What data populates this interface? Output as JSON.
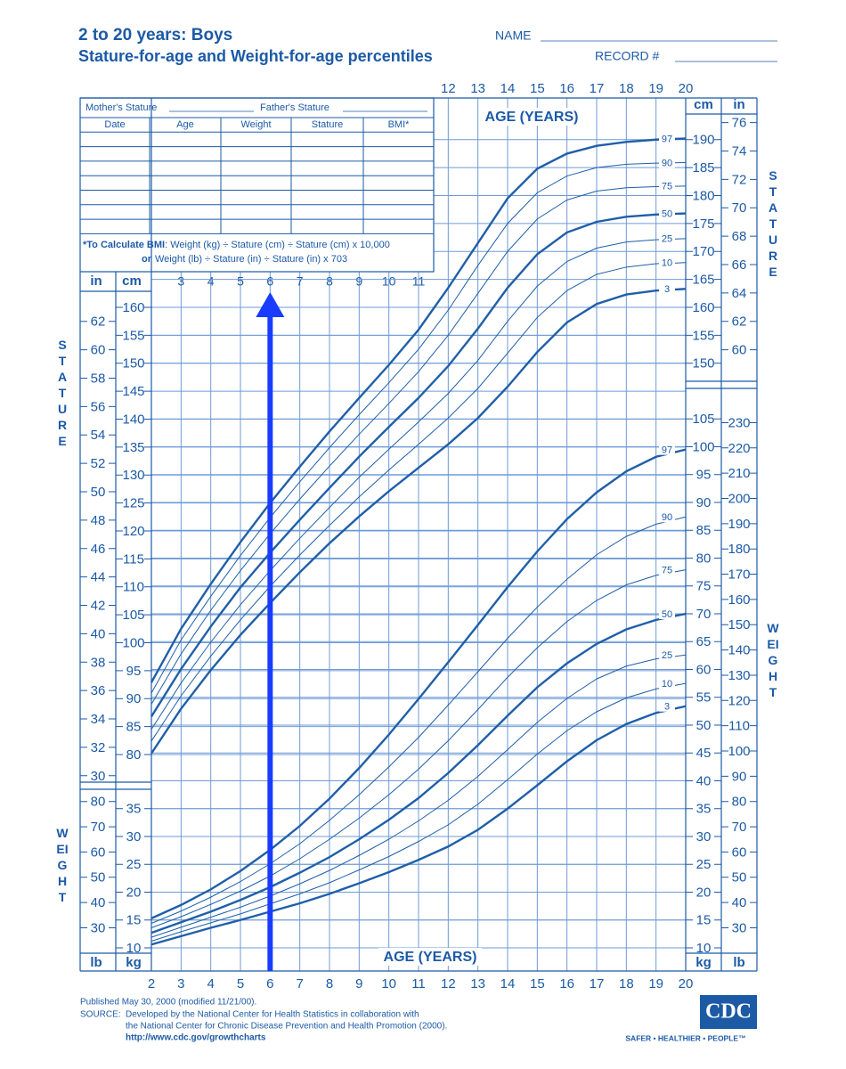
{
  "header": {
    "title": "2 to 20 years: Boys",
    "subtitle": "Stature-for-age and Weight-for-age percentiles",
    "name_label": "NAME",
    "record_label": "RECORD #"
  },
  "record_table": {
    "mother": "Mother's Stature",
    "father": "Father's Stature",
    "columns": [
      "Date",
      "Age",
      "Weight",
      "Stature",
      "BMI*"
    ],
    "note": [
      {
        "bold": "*To Calculate BMI",
        "text": ": Weight (kg) ÷ Stature (cm) ÷ Stature (cm) x 10,000"
      },
      {
        "bold": "or",
        "text": "Weight (lb) ÷ Stature (in) ÷ Stature (in) x 703"
      }
    ]
  },
  "chart_data": {
    "type": "line",
    "x_label": "AGE (YEARS)",
    "x": [
      2,
      3,
      4,
      5,
      6,
      7,
      8,
      9,
      10,
      11,
      12,
      13,
      14,
      15,
      16,
      17,
      18,
      19,
      20
    ],
    "xlim": [
      2,
      20
    ],
    "xticks": [
      2,
      3,
      4,
      5,
      6,
      7,
      8,
      9,
      10,
      11,
      12,
      13,
      14,
      15,
      16,
      17,
      18,
      19,
      20
    ],
    "grid": true,
    "highlight_x": 6,
    "highlight_color": "#1a3cff",
    "panels": [
      {
        "name": "STATURE",
        "unit": "cm",
        "ylim": [
          76,
          196
        ],
        "left_ticks": [
          80,
          85,
          90,
          95,
          100,
          105,
          110,
          115,
          120,
          125,
          130,
          135,
          140,
          145,
          150,
          155,
          160
        ],
        "right_ticks": [
          150,
          155,
          160,
          165,
          170,
          175,
          180,
          185,
          190
        ],
        "alt_unit": "in",
        "alt_lim": [
          30,
          77
        ],
        "alt_left_ticks": [
          30,
          32,
          34,
          36,
          38,
          40,
          42,
          44,
          46,
          48,
          50,
          52,
          54,
          56,
          58,
          60,
          62
        ],
        "alt_right_ticks": [
          60,
          62,
          64,
          66,
          68,
          70,
          72,
          74,
          76
        ],
        "series": [
          {
            "name": "97",
            "color": "#1f5fa8",
            "width": 2.4,
            "values": [
              92.9,
              102.5,
              110.5,
              118.0,
              125.0,
              131.5,
              137.8,
              143.8,
              149.7,
              156.0,
              163.5,
              171.5,
              179.5,
              184.8,
              187.5,
              188.9,
              189.6,
              190.0,
              190.2
            ]
          },
          {
            "name": "90",
            "color": "#1f5fa8",
            "width": 1,
            "values": [
              91.0,
              100.5,
              108.3,
              115.6,
              122.4,
              128.8,
              134.9,
              140.8,
              146.5,
              152.5,
              159.5,
              167.5,
              175.0,
              180.5,
              183.5,
              185.0,
              185.6,
              185.8,
              185.9
            ]
          },
          {
            "name": "75",
            "color": "#1f5fa8",
            "width": 1,
            "values": [
              89.0,
              98.0,
              105.8,
              112.9,
              119.5,
              125.7,
              131.6,
              137.3,
              142.8,
              148.5,
              155.0,
              162.5,
              170.0,
              175.8,
              179.2,
              180.8,
              181.4,
              181.6,
              181.7
            ]
          },
          {
            "name": "50",
            "color": "#1f5fa8",
            "width": 2.4,
            "values": [
              86.8,
              95.3,
              102.9,
              109.9,
              116.1,
              122.0,
              127.7,
              133.3,
              138.6,
              143.8,
              149.5,
              156.2,
              163.5,
              169.5,
              173.4,
              175.3,
              176.2,
              176.6,
              176.8
            ]
          },
          {
            "name": "25",
            "color": "#1f5fa8",
            "width": 1,
            "values": [
              84.5,
              92.8,
              100.1,
              106.8,
              112.9,
              118.7,
              124.2,
              129.6,
              134.6,
              139.5,
              144.6,
              150.5,
              157.5,
              163.8,
              168.2,
              170.6,
              171.7,
              172.1,
              172.3
            ]
          },
          {
            "name": "10",
            "color": "#1f5fa8",
            "width": 1,
            "values": [
              82.4,
              90.5,
              97.6,
              104.1,
              110.1,
              115.7,
              121.0,
              126.1,
              130.9,
              135.5,
              140.2,
              145.5,
              151.8,
              158.2,
              163.0,
              165.9,
              167.2,
              167.8,
              168.0
            ]
          },
          {
            "name": "3",
            "color": "#1f5fa8",
            "width": 2.4,
            "values": [
              80.2,
              88.2,
              95.1,
              101.4,
              107.1,
              112.6,
              117.8,
              122.6,
              127.1,
              131.3,
              135.5,
              140.2,
              145.8,
              152.0,
              157.3,
              160.6,
              162.3,
              163.0,
              163.3
            ]
          }
        ]
      },
      {
        "name": "WEIGHT",
        "unit": "kg",
        "ylim": [
          8,
          106
        ],
        "left_ticks": [
          10,
          15,
          20,
          25,
          30,
          35
        ],
        "right_ticks": [
          10,
          15,
          20,
          25,
          30,
          35,
          40,
          45,
          50,
          55,
          60,
          65,
          70,
          75,
          80,
          85,
          90,
          95,
          100,
          105
        ],
        "alt_unit": "lb",
        "alt_lim": [
          18,
          234
        ],
        "alt_left_ticks": [
          30,
          40,
          50,
          60,
          70,
          80
        ],
        "alt_right_ticks": [
          30,
          40,
          50,
          60,
          70,
          80,
          90,
          100,
          110,
          120,
          130,
          140,
          150,
          160,
          170,
          180,
          190,
          200,
          210,
          220,
          230
        ],
        "series": [
          {
            "name": "97",
            "color": "#1f5fa8",
            "width": 2.4,
            "values": [
              15.3,
              17.7,
              20.5,
              23.8,
              27.6,
              31.9,
              36.8,
              42.3,
              48.3,
              54.7,
              61.3,
              68.0,
              74.8,
              81.2,
              87.0,
              91.8,
              95.6,
              98.2,
              99.5
            ]
          },
          {
            "name": "90",
            "color": "#1f5fa8",
            "width": 1,
            "values": [
              14.4,
              16.6,
              19.1,
              21.9,
              25.1,
              28.7,
              32.9,
              37.5,
              42.5,
              47.8,
              53.6,
              59.6,
              65.6,
              71.2,
              76.2,
              80.6,
              83.9,
              86.1,
              87.4
            ]
          },
          {
            "name": "75",
            "color": "#1f5fa8",
            "width": 1,
            "values": [
              13.6,
              15.6,
              17.8,
              20.2,
              22.9,
              26.0,
              29.5,
              33.3,
              37.5,
              42.1,
              47.2,
              52.8,
              58.6,
              63.9,
              68.6,
              72.4,
              75.2,
              76.9,
              77.9
            ]
          },
          {
            "name": "50",
            "color": "#1f5fa8",
            "width": 2.4,
            "values": [
              12.7,
              14.6,
              16.5,
              18.6,
              20.9,
              23.5,
              26.3,
              29.5,
              33.0,
              36.9,
              41.4,
              46.4,
              51.7,
              56.8,
              61.1,
              64.6,
              67.2,
              68.9,
              70.0
            ]
          },
          {
            "name": "25",
            "color": "#1f5fa8",
            "width": 1,
            "values": [
              11.9,
              13.7,
              15.5,
              17.3,
              19.3,
              21.5,
              23.9,
              26.6,
              29.5,
              32.8,
              36.5,
              40.8,
              45.6,
              50.5,
              54.8,
              58.3,
              60.6,
              61.9,
              62.6
            ]
          },
          {
            "name": "10",
            "color": "#1f5fa8",
            "width": 1,
            "values": [
              11.2,
              12.9,
              14.5,
              16.1,
              17.9,
              19.7,
              21.7,
              24.0,
              26.4,
              29.1,
              32.1,
              35.8,
              40.2,
              44.8,
              49.0,
              52.4,
              54.9,
              56.5,
              57.5
            ]
          },
          {
            "name": "3",
            "color": "#1f5fa8",
            "width": 2.4,
            "values": [
              10.6,
              12.1,
              13.6,
              15.0,
              16.5,
              18.0,
              19.7,
              21.6,
              23.6,
              25.8,
              28.2,
              31.2,
              35.0,
              39.2,
              43.5,
              47.3,
              50.2,
              52.2,
              53.4
            ]
          }
        ]
      }
    ]
  },
  "footer": {
    "published": "Published May 30, 2000 (modified 11/21/00).",
    "source_label": "SOURCE:",
    "source": [
      "Developed by the National Center for Health Statistics in collaboration with",
      "the National Center for Chronic Disease Prevention and Health Promotion (2000)."
    ],
    "url": "http://www.cdc.gov/growthcharts",
    "logo": "CDC",
    "tagline": "SAFER • HEALTHIER • PEOPLE™"
  }
}
